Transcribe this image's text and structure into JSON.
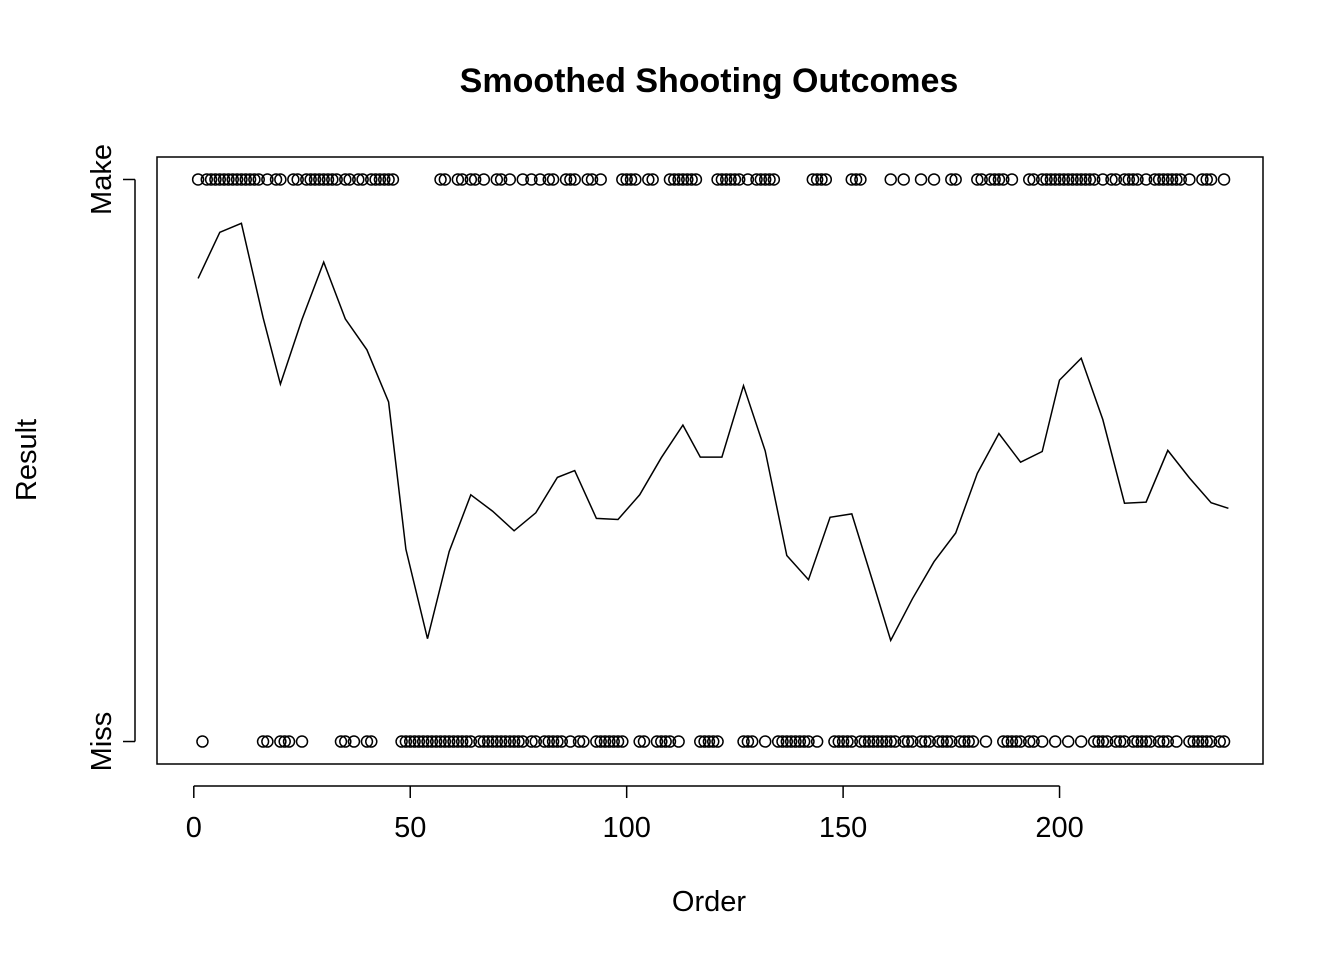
{
  "chart_data": {
    "type": "scatter",
    "title": "Smoothed Shooting Outcomes",
    "xlabel": "Order",
    "ylabel": "Result",
    "xlim": [
      -8.5,
      247
    ],
    "ylim": [
      -0.04,
      1.04
    ],
    "x_ticks": [
      0,
      50,
      100,
      150,
      200
    ],
    "y_ticks": [
      {
        "value": 0,
        "label": "Miss"
      },
      {
        "value": 1,
        "label": "Make"
      }
    ],
    "grid": false,
    "series": [
      {
        "style": "points",
        "marker": "open-circle",
        "x_make": [
          1,
          3,
          4,
          5,
          6,
          7,
          8,
          9,
          10,
          11,
          12,
          13,
          14,
          15,
          17,
          19,
          20,
          23,
          24,
          26,
          27,
          28,
          29,
          30,
          31,
          32,
          33,
          35,
          36,
          38,
          39,
          41,
          42,
          43,
          44,
          45,
          46,
          57,
          58,
          61,
          62,
          64,
          65,
          67,
          70,
          71,
          73,
          76,
          78,
          80,
          82,
          83,
          86,
          87,
          88,
          91,
          92,
          94,
          99,
          100,
          101,
          102,
          105,
          106,
          110,
          111,
          112,
          113,
          114,
          115,
          116,
          121,
          122,
          123,
          124,
          125,
          126,
          128,
          130,
          131,
          132,
          133,
          134,
          143,
          144,
          145,
          146,
          152,
          153,
          154,
          161,
          164,
          168,
          171,
          175,
          176,
          181,
          182,
          184,
          185,
          186,
          187,
          189,
          193,
          194,
          196,
          197,
          198,
          199,
          200,
          201,
          202,
          203,
          204,
          205,
          206,
          207,
          208,
          210,
          212,
          213,
          215,
          216,
          217,
          218,
          220,
          222,
          223,
          224,
          225,
          226,
          227,
          228,
          230,
          233,
          234,
          235,
          238
        ],
        "x_miss": [
          2,
          16,
          17,
          20,
          21,
          22,
          25,
          34,
          35,
          37,
          40,
          41,
          48,
          49,
          50,
          51,
          52,
          53,
          54,
          55,
          56,
          57,
          58,
          59,
          60,
          61,
          62,
          63,
          64,
          66,
          67,
          68,
          69,
          70,
          71,
          72,
          73,
          74,
          75,
          76,
          78,
          79,
          81,
          82,
          83,
          84,
          85,
          87,
          89,
          90,
          93,
          94,
          95,
          96,
          97,
          98,
          99,
          103,
          104,
          107,
          108,
          109,
          110,
          112,
          117,
          118,
          119,
          120,
          121,
          127,
          128,
          129,
          132,
          135,
          136,
          137,
          138,
          139,
          140,
          141,
          142,
          144,
          148,
          149,
          150,
          151,
          152,
          154,
          155,
          156,
          157,
          158,
          159,
          160,
          161,
          162,
          164,
          165,
          166,
          168,
          169,
          170,
          172,
          173,
          174,
          175,
          177,
          178,
          179,
          180,
          183,
          187,
          188,
          189,
          190,
          191,
          193,
          194,
          196,
          199,
          202,
          205,
          208,
          209,
          210,
          211,
          213,
          214,
          215,
          217,
          218,
          219,
          220,
          221,
          223,
          224,
          225,
          227,
          230,
          231,
          232,
          233,
          234,
          235,
          237,
          238
        ]
      },
      {
        "style": "line",
        "x": [
          1,
          6,
          11,
          16,
          20,
          25,
          30,
          35,
          40,
          45,
          49,
          54,
          59,
          64,
          69,
          74,
          79,
          84,
          88,
          93,
          98,
          103,
          108,
          113,
          117,
          122,
          127,
          132,
          137,
          142,
          147,
          152,
          157,
          161,
          166,
          171,
          176,
          181,
          186,
          191,
          196,
          200,
          205,
          210,
          215,
          220,
          225,
          230,
          235,
          239
        ],
        "y": [
          0.824,
          0.906,
          0.922,
          0.754,
          0.636,
          0.751,
          0.853,
          0.752,
          0.697,
          0.604,
          0.342,
          0.183,
          0.338,
          0.439,
          0.41,
          0.375,
          0.407,
          0.47,
          0.482,
          0.397,
          0.395,
          0.439,
          0.505,
          0.563,
          0.506,
          0.506,
          0.633,
          0.517,
          0.331,
          0.288,
          0.399,
          0.405,
          0.281,
          0.18,
          0.254,
          0.32,
          0.371,
          0.477,
          0.548,
          0.497,
          0.516,
          0.643,
          0.682,
          0.573,
          0.424,
          0.426,
          0.518,
          0.469,
          0.425,
          0.415
        ]
      }
    ]
  }
}
